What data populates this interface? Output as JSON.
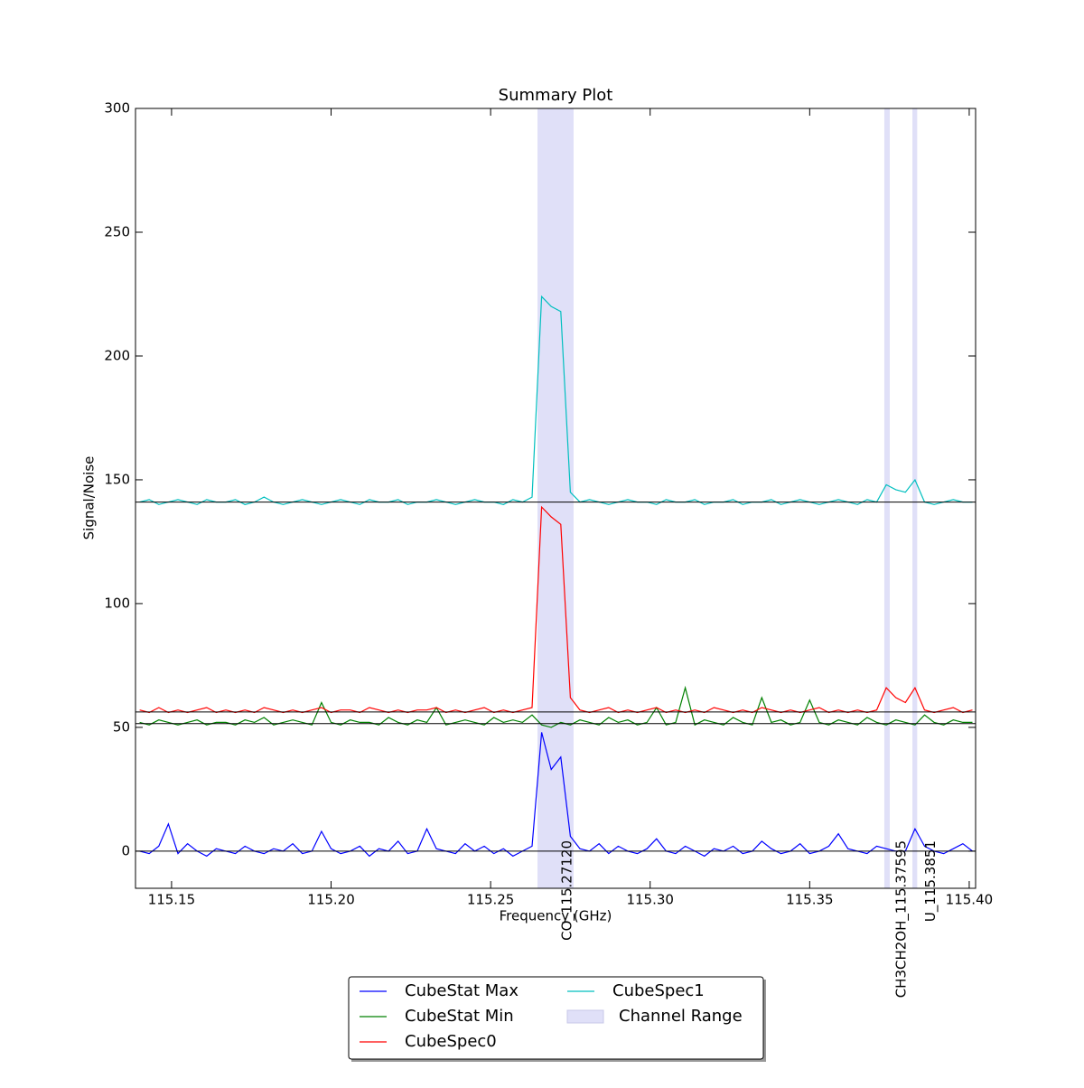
{
  "chart_data": {
    "type": "line",
    "title": "Summary Plot",
    "x_label": "Frequency (GHz)",
    "y_label": "Signal/Noise",
    "xlim": [
      115.1387,
      115.402
    ],
    "ylim": [
      -15,
      300
    ],
    "xticks": [
      115.15,
      {
        "value": 115.2,
        "label": "115.20"
      },
      115.25,
      {
        "value": 115.3,
        "label": "115.30"
      },
      115.35,
      {
        "value": 115.4,
        "label": "115.40"
      }
    ],
    "yticks": [
      0,
      50,
      100,
      150,
      200,
      250,
      300
    ],
    "x": [
      115.14,
      115.143,
      115.146,
      115.149,
      115.152,
      115.155,
      115.158,
      115.161,
      115.164,
      115.167,
      115.17,
      115.173,
      115.176,
      115.179,
      115.182,
      115.185,
      115.188,
      115.191,
      115.194,
      115.197,
      115.2,
      115.203,
      115.206,
      115.209,
      115.212,
      115.215,
      115.218,
      115.221,
      115.224,
      115.227,
      115.23,
      115.233,
      115.236,
      115.239,
      115.242,
      115.245,
      115.248,
      115.251,
      115.254,
      115.257,
      115.26,
      115.263,
      115.266,
      115.269,
      115.272,
      115.275,
      115.278,
      115.281,
      115.284,
      115.287,
      115.29,
      115.293,
      115.296,
      115.299,
      115.302,
      115.305,
      115.308,
      115.311,
      115.314,
      115.317,
      115.32,
      115.323,
      115.326,
      115.329,
      115.332,
      115.335,
      115.338,
      115.341,
      115.344,
      115.347,
      115.35,
      115.353,
      115.356,
      115.359,
      115.362,
      115.365,
      115.368,
      115.371,
      115.374,
      115.377,
      115.38,
      115.383,
      115.386,
      115.389,
      115.392,
      115.395,
      115.398,
      115.401
    ],
    "series": [
      {
        "name": "CubeStat Max",
        "color": "#0000ff",
        "values": [
          0,
          -1,
          2,
          11,
          -1,
          3,
          0,
          -2,
          1,
          0,
          -1,
          2,
          0,
          -1,
          1,
          0,
          3,
          -1,
          0,
          8,
          1,
          -1,
          0,
          2,
          -2,
          1,
          0,
          4,
          -1,
          0,
          9,
          1,
          0,
          -1,
          3,
          0,
          2,
          -1,
          1,
          -2,
          0,
          2,
          48,
          33,
          38,
          6,
          1,
          0,
          3,
          -1,
          2,
          0,
          -1,
          1,
          5,
          0,
          -1,
          2,
          0,
          -2,
          1,
          0,
          2,
          -1,
          0,
          4,
          1,
          -1,
          0,
          3,
          -1,
          0,
          2,
          7,
          1,
          0,
          -1,
          2,
          1,
          0,
          0,
          9,
          2,
          0,
          -1,
          1,
          3,
          0
        ]
      },
      {
        "name": "CubeStat Min",
        "color": "#008000",
        "values": [
          52,
          51,
          53,
          52,
          51,
          52,
          53,
          51,
          52,
          52,
          51,
          53,
          52,
          54,
          51,
          52,
          53,
          52,
          51,
          60,
          52,
          51,
          53,
          52,
          52,
          51,
          54,
          52,
          51,
          53,
          52,
          58,
          51,
          52,
          53,
          52,
          51,
          54,
          52,
          53,
          52,
          55,
          51,
          50,
          52,
          51,
          53,
          52,
          51,
          54,
          52,
          53,
          51,
          52,
          58,
          51,
          52,
          66,
          51,
          53,
          52,
          51,
          54,
          52,
          51,
          62,
          52,
          53,
          51,
          52,
          61,
          52,
          51,
          53,
          52,
          51,
          54,
          52,
          51,
          53,
          52,
          51,
          55,
          52,
          51,
          53,
          52,
          52
        ]
      },
      {
        "name": "CubeSpec0",
        "color": "#ff0000",
        "values": [
          57,
          56,
          58,
          56,
          57,
          56,
          57,
          58,
          56,
          57,
          56,
          57,
          56,
          58,
          57,
          56,
          57,
          56,
          57,
          58,
          56,
          57,
          57,
          56,
          58,
          57,
          56,
          57,
          56,
          57,
          57,
          58,
          56,
          57,
          56,
          57,
          58,
          56,
          57,
          56,
          57,
          58,
          139,
          135,
          132,
          62,
          57,
          56,
          57,
          58,
          56,
          57,
          56,
          57,
          58,
          56,
          57,
          56,
          57,
          56,
          58,
          57,
          56,
          57,
          56,
          58,
          57,
          56,
          57,
          56,
          57,
          58,
          56,
          57,
          56,
          57,
          56,
          57,
          66,
          62,
          60,
          66,
          57,
          56,
          57,
          58,
          56,
          57
        ]
      },
      {
        "name": "CubeSpec1",
        "color": "#00bfbf",
        "values": [
          141,
          142,
          140,
          141,
          142,
          141,
          140,
          142,
          141,
          141,
          142,
          140,
          141,
          143,
          141,
          140,
          141,
          142,
          141,
          140,
          141,
          142,
          141,
          140,
          142,
          141,
          141,
          142,
          140,
          141,
          141,
          142,
          141,
          140,
          141,
          142,
          141,
          141,
          140,
          142,
          141,
          143,
          224,
          220,
          218,
          145,
          141,
          142,
          141,
          140,
          141,
          142,
          141,
          141,
          140,
          142,
          141,
          141,
          142,
          140,
          141,
          141,
          142,
          140,
          141,
          141,
          142,
          140,
          141,
          142,
          141,
          140,
          141,
          142,
          141,
          140,
          142,
          141,
          148,
          146,
          145,
          150,
          141,
          140,
          141,
          142,
          141,
          141
        ]
      }
    ],
    "baselines": [
      0,
      51.5,
      56.2,
      141
    ],
    "channel_range_name": "Channel Range",
    "channel_range_color": "#e0e0f8",
    "channel_ranges": [
      [
        115.2647,
        115.276
      ],
      [
        115.3734,
        115.3751
      ],
      [
        115.3822,
        115.3837
      ]
    ],
    "line_ids": [
      {
        "label": "CO_115.27120",
        "x": 115.2712
      },
      {
        "label": "CH3CH2OH_115.37595",
        "x": 115.37595
      },
      {
        "label": "U_115.3851",
        "x": 115.3851
      }
    ]
  }
}
